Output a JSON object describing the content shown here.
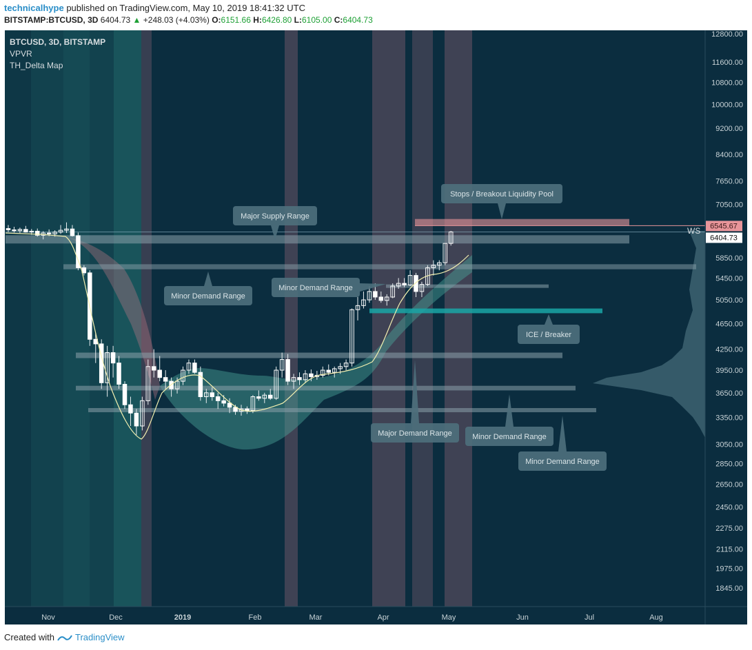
{
  "header": {
    "author": "technicalhype",
    "published_text": "published on TradingView.com, May 10, 2019 18:41:32 UTC",
    "symbol": "BITSTAMP:BTCUSD, 3D",
    "last": "6404.73",
    "change": "+248.03 (+4.03%)",
    "o_label": "O:",
    "o": "6151.66",
    "h_label": "H:",
    "h": "6426.80",
    "l_label": "L:",
    "l": "6105.00",
    "c_label": "C:",
    "c": "6404.73"
  },
  "footer": {
    "created_with": "Created with",
    "brand": "TradingView"
  },
  "colors": {
    "background": "#0b2d3f",
    "panel": "#0f3a4e",
    "bull_candle": "#ffffff",
    "bear_candle": "#ffffff",
    "range_band": "#8aa0aa",
    "liquidity_pool": "#e8959a",
    "ice_band": "#1aa6a6",
    "label_box": "#4d6f7c",
    "ma_line": "#f3f0b0",
    "up_price": "#1ea035"
  },
  "chart_data": {
    "type": "candlestick",
    "title": "BTCUSD, 3D, BITSTAMP",
    "indicators": [
      "VPVR",
      "TH_Delta Map"
    ],
    "y_scale": "log",
    "ylim": [
      1750,
      13000
    ],
    "y_ticks": [
      "12800.00",
      "11600.00",
      "10800.00",
      "10000.00",
      "9200.00",
      "8400.00",
      "7650.00",
      "7050.00",
      "5850.00",
      "5450.00",
      "5050.00",
      "4650.00",
      "4250.00",
      "3950.00",
      "3650.00",
      "3350.00",
      "3050.00",
      "2850.00",
      "2650.00",
      "2450.00",
      "2275.00",
      "2115.00",
      "1975.00",
      "1845.00"
    ],
    "x_ticks": [
      "Nov",
      "Dec",
      "2019",
      "Feb",
      "Mar",
      "Apr",
      "May",
      "Jun",
      "Jul",
      "Aug"
    ],
    "price_tags": {
      "liquidity": "6545.67",
      "last": "6404.73"
    },
    "ws_label": "WS",
    "candles": [
      {
        "o": 6480,
        "h": 6560,
        "l": 6400,
        "c": 6450
      },
      {
        "o": 6450,
        "h": 6520,
        "l": 6390,
        "c": 6430
      },
      {
        "o": 6430,
        "h": 6500,
        "l": 6380,
        "c": 6460
      },
      {
        "o": 6460,
        "h": 6540,
        "l": 6390,
        "c": 6400
      },
      {
        "o": 6400,
        "h": 6470,
        "l": 6340,
        "c": 6420
      },
      {
        "o": 6420,
        "h": 6480,
        "l": 6300,
        "c": 6330
      },
      {
        "o": 6330,
        "h": 6420,
        "l": 6240,
        "c": 6380
      },
      {
        "o": 6380,
        "h": 6460,
        "l": 6310,
        "c": 6360
      },
      {
        "o": 6360,
        "h": 6440,
        "l": 6300,
        "c": 6400
      },
      {
        "o": 6400,
        "h": 6560,
        "l": 6360,
        "c": 6440
      },
      {
        "o": 6440,
        "h": 6620,
        "l": 6380,
        "c": 6470
      },
      {
        "o": 6470,
        "h": 6560,
        "l": 6300,
        "c": 6320
      },
      {
        "o": 6320,
        "h": 6390,
        "l": 5600,
        "c": 5650
      },
      {
        "o": 5650,
        "h": 5700,
        "l": 5500,
        "c": 5550
      },
      {
        "o": 5550,
        "h": 5600,
        "l": 4300,
        "c": 4400
      },
      {
        "o": 4400,
        "h": 4500,
        "l": 4050,
        "c": 4330
      },
      {
        "o": 4330,
        "h": 4400,
        "l": 3700,
        "c": 3780
      },
      {
        "o": 3780,
        "h": 4300,
        "l": 3600,
        "c": 4200
      },
      {
        "o": 4200,
        "h": 4300,
        "l": 3850,
        "c": 4050
      },
      {
        "o": 4050,
        "h": 4150,
        "l": 3700,
        "c": 3760
      },
      {
        "o": 3760,
        "h": 3800,
        "l": 3450,
        "c": 3500
      },
      {
        "o": 3500,
        "h": 3600,
        "l": 3250,
        "c": 3400
      },
      {
        "o": 3400,
        "h": 3450,
        "l": 3150,
        "c": 3250
      },
      {
        "o": 3250,
        "h": 3600,
        "l": 3200,
        "c": 3550
      },
      {
        "o": 3550,
        "h": 4100,
        "l": 3500,
        "c": 4000
      },
      {
        "o": 4000,
        "h": 4250,
        "l": 3850,
        "c": 3950
      },
      {
        "o": 3950,
        "h": 4150,
        "l": 3800,
        "c": 3850
      },
      {
        "o": 3850,
        "h": 3950,
        "l": 3700,
        "c": 3800
      },
      {
        "o": 3800,
        "h": 3850,
        "l": 3600,
        "c": 3700
      },
      {
        "o": 3700,
        "h": 3850,
        "l": 3640,
        "c": 3800
      },
      {
        "o": 3800,
        "h": 4000,
        "l": 3750,
        "c": 3950
      },
      {
        "o": 3950,
        "h": 4100,
        "l": 3900,
        "c": 4050
      },
      {
        "o": 4050,
        "h": 4100,
        "l": 3900,
        "c": 3920
      },
      {
        "o": 3920,
        "h": 4000,
        "l": 3550,
        "c": 3600
      },
      {
        "o": 3600,
        "h": 3700,
        "l": 3520,
        "c": 3650
      },
      {
        "o": 3650,
        "h": 3720,
        "l": 3550,
        "c": 3600
      },
      {
        "o": 3600,
        "h": 3650,
        "l": 3450,
        "c": 3550
      },
      {
        "o": 3550,
        "h": 3620,
        "l": 3480,
        "c": 3520
      },
      {
        "o": 3520,
        "h": 3580,
        "l": 3400,
        "c": 3470
      },
      {
        "o": 3470,
        "h": 3500,
        "l": 3380,
        "c": 3420
      },
      {
        "o": 3420,
        "h": 3500,
        "l": 3370,
        "c": 3450
      },
      {
        "o": 3450,
        "h": 3480,
        "l": 3390,
        "c": 3430
      },
      {
        "o": 3430,
        "h": 3620,
        "l": 3400,
        "c": 3600
      },
      {
        "o": 3600,
        "h": 3680,
        "l": 3550,
        "c": 3580
      },
      {
        "o": 3580,
        "h": 3650,
        "l": 3520,
        "c": 3620
      },
      {
        "o": 3620,
        "h": 3700,
        "l": 3560,
        "c": 3580
      },
      {
        "o": 3580,
        "h": 4000,
        "l": 3560,
        "c": 3950
      },
      {
        "o": 3950,
        "h": 4200,
        "l": 3850,
        "c": 4100
      },
      {
        "o": 4100,
        "h": 4180,
        "l": 3750,
        "c": 3800
      },
      {
        "o": 3800,
        "h": 3900,
        "l": 3700,
        "c": 3850
      },
      {
        "o": 3850,
        "h": 3920,
        "l": 3750,
        "c": 3820
      },
      {
        "o": 3820,
        "h": 3950,
        "l": 3780,
        "c": 3900
      },
      {
        "o": 3900,
        "h": 3960,
        "l": 3800,
        "c": 3860
      },
      {
        "o": 3860,
        "h": 3940,
        "l": 3820,
        "c": 3880
      },
      {
        "o": 3880,
        "h": 4000,
        "l": 3850,
        "c": 3950
      },
      {
        "o": 3950,
        "h": 4030,
        "l": 3880,
        "c": 3920
      },
      {
        "o": 3920,
        "h": 4000,
        "l": 3850,
        "c": 3970
      },
      {
        "o": 3970,
        "h": 4050,
        "l": 3900,
        "c": 4000
      },
      {
        "o": 4000,
        "h": 4100,
        "l": 3950,
        "c": 4050
      },
      {
        "o": 4050,
        "h": 4900,
        "l": 4000,
        "c": 4880
      },
      {
        "o": 4880,
        "h": 5100,
        "l": 4700,
        "c": 4950
      },
      {
        "o": 4950,
        "h": 5200,
        "l": 4900,
        "c": 5050
      },
      {
        "o": 5050,
        "h": 5300,
        "l": 5000,
        "c": 5200
      },
      {
        "o": 5200,
        "h": 5350,
        "l": 5050,
        "c": 5100
      },
      {
        "o": 5100,
        "h": 5200,
        "l": 5000,
        "c": 5040
      },
      {
        "o": 5040,
        "h": 5150,
        "l": 4950,
        "c": 5100
      },
      {
        "o": 5100,
        "h": 5350,
        "l": 5080,
        "c": 5300
      },
      {
        "o": 5300,
        "h": 5450,
        "l": 5250,
        "c": 5350
      },
      {
        "o": 5350,
        "h": 5450,
        "l": 5280,
        "c": 5320
      },
      {
        "o": 5320,
        "h": 5600,
        "l": 5300,
        "c": 5500
      },
      {
        "o": 5500,
        "h": 5550,
        "l": 5100,
        "c": 5200
      },
      {
        "o": 5200,
        "h": 5380,
        "l": 5100,
        "c": 5330
      },
      {
        "o": 5330,
        "h": 5700,
        "l": 5300,
        "c": 5650
      },
      {
        "o": 5650,
        "h": 5800,
        "l": 5500,
        "c": 5700
      },
      {
        "o": 5700,
        "h": 5800,
        "l": 5600,
        "c": 5750
      },
      {
        "o": 5750,
        "h": 6150,
        "l": 5700,
        "c": 6152
      },
      {
        "o": 6152,
        "h": 6427,
        "l": 6105,
        "c": 6405
      }
    ],
    "annotations": [
      {
        "text": "Major Supply Range",
        "price_low": 6150,
        "price_high": 6330
      },
      {
        "text": "Stops / Breakout Liquidity Pool",
        "price_low": 6545,
        "price_high": 6700
      },
      {
        "text": "Minor Demand Range",
        "price_low": 5620,
        "price_high": 5720
      },
      {
        "text": "Minor Demand Range",
        "price_low": 5300,
        "price_high": 5330
      },
      {
        "text": "ICE / Breaker",
        "price_low": 4820,
        "price_high": 4900
      },
      {
        "text": "Major Demand Range",
        "price_low": 4120,
        "price_high": 4200
      },
      {
        "text": "Minor Demand Range",
        "price_low": 3680,
        "price_high": 3740
      },
      {
        "text": "Minor Demand Range",
        "price_low": 3410,
        "price_high": 3460
      }
    ]
  }
}
